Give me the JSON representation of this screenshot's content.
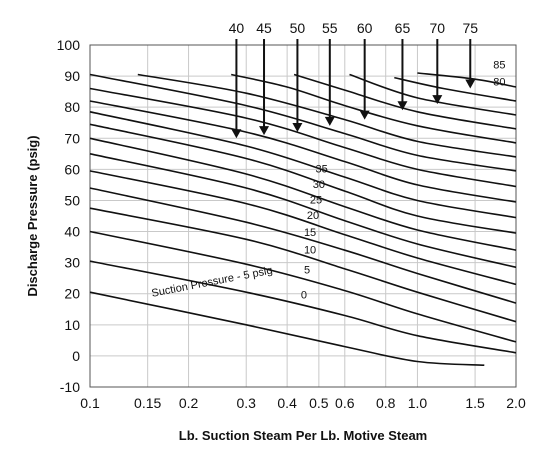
{
  "chart_data": {
    "type": "line",
    "title": "",
    "xlabel": "Lb. Suction Steam Per Lb. Motive Steam",
    "ylabel": "Discharge Pressure (psig)",
    "x_scale": "log",
    "xlim": [
      0.1,
      2.0
    ],
    "ylim": [
      -10,
      100
    ],
    "grid": true,
    "x_ticks": [
      {
        "value": 0.1,
        "label": "0.1"
      },
      {
        "value": 0.15,
        "label": "0.15"
      },
      {
        "value": 0.2,
        "label": "0.2"
      },
      {
        "value": 0.3,
        "label": "0.3"
      },
      {
        "value": 0.4,
        "label": "0.4"
      },
      {
        "value": 0.5,
        "label": "0.5"
      },
      {
        "value": 0.6,
        "label": "0.6"
      },
      {
        "value": 0.8,
        "label": "0.8"
      },
      {
        "value": 1.0,
        "label": "1.0"
      },
      {
        "value": 1.5,
        "label": "1.5"
      },
      {
        "value": 2.0,
        "label": "2.0"
      }
    ],
    "y_ticks": [
      {
        "value": -10,
        "label": "-10"
      },
      {
        "value": 0,
        "label": "0"
      },
      {
        "value": 10,
        "label": "10"
      },
      {
        "value": 20,
        "label": "20"
      },
      {
        "value": 30,
        "label": "30"
      },
      {
        "value": 40,
        "label": "40"
      },
      {
        "value": 50,
        "label": "50"
      },
      {
        "value": 60,
        "label": "60"
      },
      {
        "value": 70,
        "label": "70"
      },
      {
        "value": 80,
        "label": "80"
      },
      {
        "value": 90,
        "label": "90"
      },
      {
        "value": 100,
        "label": "100"
      }
    ],
    "series": [
      {
        "name": "Suction Pressure - 5 psig",
        "x": [
          0.1,
          0.3,
          0.6,
          1.0,
          1.6
        ],
        "y": [
          20.5,
          10.0,
          3.0,
          -1.8,
          -3.0
        ]
      },
      {
        "name": "0",
        "x": [
          0.1,
          0.3,
          0.6,
          1.0,
          2.0
        ],
        "y": [
          30.5,
          20.5,
          13.0,
          6.5,
          1.0
        ]
      },
      {
        "name": "5",
        "x": [
          0.1,
          0.3,
          0.6,
          1.0,
          2.0
        ],
        "y": [
          40.0,
          29.5,
          21.0,
          13.5,
          4.5
        ]
      },
      {
        "name": "10",
        "x": [
          0.1,
          0.3,
          0.6,
          1.0,
          2.0
        ],
        "y": [
          47.5,
          37.5,
          28.0,
          20.5,
          11.0
        ]
      },
      {
        "name": "15",
        "x": [
          0.1,
          0.3,
          0.6,
          1.0,
          2.0
        ],
        "y": [
          54.0,
          43.0,
          34.0,
          26.5,
          17.0
        ]
      },
      {
        "name": "20",
        "x": [
          0.1,
          0.3,
          0.6,
          1.0,
          2.0
        ],
        "y": [
          59.5,
          49.0,
          39.0,
          31.5,
          23.0
        ]
      },
      {
        "name": "25",
        "x": [
          0.1,
          0.3,
          0.6,
          1.0,
          2.0
        ],
        "y": [
          65.0,
          54.0,
          43.5,
          36.0,
          28.5
        ]
      },
      {
        "name": "30",
        "x": [
          0.1,
          0.3,
          0.6,
          1.0,
          2.0
        ],
        "y": [
          70.0,
          58.5,
          48.0,
          40.5,
          34.0
        ]
      },
      {
        "name": "35",
        "x": [
          0.1,
          0.3,
          0.6,
          1.0,
          2.0
        ],
        "y": [
          74.5,
          63.5,
          53.0,
          45.0,
          39.5
        ]
      },
      {
        "name": "40",
        "x": [
          0.1,
          0.3,
          0.6,
          1.0,
          2.0
        ],
        "y": [
          78.5,
          67.5,
          57.5,
          50.0,
          44.5
        ]
      },
      {
        "name": "45",
        "x": [
          0.1,
          0.3,
          0.6,
          1.0,
          2.0
        ],
        "y": [
          82.0,
          72.0,
          62.5,
          55.0,
          49.5
        ]
      },
      {
        "name": "50",
        "x": [
          0.1,
          0.3,
          0.6,
          1.0,
          2.0
        ],
        "y": [
          86.0,
          76.5,
          67.0,
          60.0,
          54.5
        ]
      },
      {
        "name": "55",
        "x": [
          0.1,
          0.3,
          0.6,
          1.0,
          2.0
        ],
        "y": [
          90.5,
          80.5,
          71.5,
          64.5,
          59.5
        ]
      },
      {
        "name": "60",
        "x": [
          0.14,
          0.3,
          0.6,
          1.0,
          2.0
        ],
        "y": [
          90.5,
          84.5,
          76.0,
          69.0,
          64.0
        ]
      },
      {
        "name": "65",
        "x": [
          0.27,
          0.4,
          0.6,
          1.0,
          2.0
        ],
        "y": [
          90.5,
          86.5,
          80.5,
          74.0,
          68.5
        ]
      },
      {
        "name": "70",
        "x": [
          0.42,
          0.6,
          1.0,
          2.0
        ],
        "y": [
          90.5,
          85.5,
          78.5,
          73.0
        ]
      },
      {
        "name": "75",
        "x": [
          0.62,
          1.0,
          2.0
        ],
        "y": [
          90.5,
          83.0,
          77.5
        ]
      },
      {
        "name": "80",
        "x": [
          0.85,
          1.2,
          2.0
        ],
        "y": [
          89.5,
          86.0,
          82.0
        ]
      },
      {
        "name": "85",
        "x": [
          1.0,
          1.5,
          2.0
        ],
        "y": [
          91.0,
          89.0,
          86.5
        ]
      }
    ],
    "curve_labels": [
      {
        "text": "0",
        "x": 0.45,
        "y": 18.5
      },
      {
        "text": "5",
        "x": 0.46,
        "y": 26.5
      },
      {
        "text": "10",
        "x": 0.47,
        "y": 33.0
      },
      {
        "text": "15",
        "x": 0.47,
        "y": 38.5
      },
      {
        "text": "20",
        "x": 0.48,
        "y": 44.0
      },
      {
        "text": "25",
        "x": 0.49,
        "y": 49.0
      },
      {
        "text": "30",
        "x": 0.5,
        "y": 54.0
      },
      {
        "text": "35",
        "x": 0.51,
        "y": 59.0
      },
      {
        "text": "80",
        "x": 1.78,
        "y": 87.0
      },
      {
        "text": "85",
        "x": 1.78,
        "y": 92.5
      }
    ],
    "inline_label": {
      "text": "Suction Pressure - 5 psig",
      "x": 0.155,
      "y": 19.0,
      "angle": -11
    },
    "top_labels": [
      {
        "text": "40",
        "x": 0.28,
        "arrow_to_y": 70.0
      },
      {
        "text": "45",
        "x": 0.34,
        "arrow_to_y": 71.0
      },
      {
        "text": "50",
        "x": 0.43,
        "arrow_to_y": 72.0
      },
      {
        "text": "55",
        "x": 0.54,
        "arrow_to_y": 74.0
      },
      {
        "text": "60",
        "x": 0.69,
        "arrow_to_y": 76.0
      },
      {
        "text": "65",
        "x": 0.9,
        "arrow_to_y": 79.0
      },
      {
        "text": "70",
        "x": 1.15,
        "arrow_to_y": 81.0
      },
      {
        "text": "75",
        "x": 1.45,
        "arrow_to_y": 86.0
      }
    ]
  }
}
